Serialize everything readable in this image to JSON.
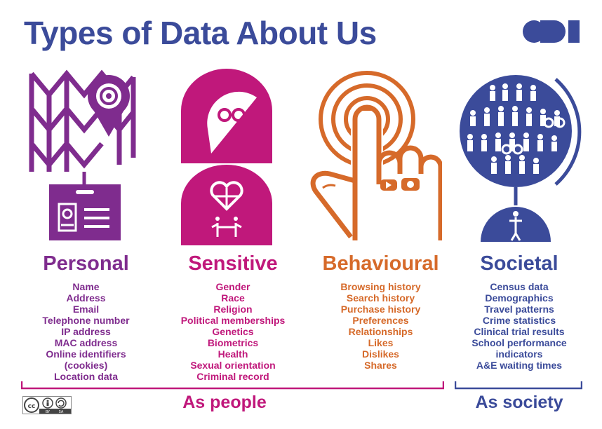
{
  "title": "Types of Data About Us",
  "logo_text": "ODI",
  "colors": {
    "personal": "#7f2c8e",
    "sensitive": "#c0187b",
    "behavioural": "#d66a2a",
    "societal": "#3b4b9a"
  },
  "categories": [
    {
      "name": "Personal",
      "icon": "map-pin-id-card-icon",
      "items": [
        "Name",
        "Address",
        "Email",
        "Telephone number",
        "IP address",
        "MAC address",
        "Online identifiers",
        "(cookies)",
        "Location data"
      ]
    },
    {
      "name": "Sensitive",
      "icon": "person-heart-icon",
      "items": [
        "Gender",
        "Race",
        "Religion",
        "Political memberships",
        "Genetics",
        "Biometrics",
        "Health",
        "Sexual orientation",
        "Criminal record"
      ]
    },
    {
      "name": "Behavioural",
      "icon": "hand-tap-icon",
      "items": [
        "Browsing history",
        "Search history",
        "Purchase history",
        "Preferences",
        "Relationships",
        "Likes",
        "Dislikes",
        "Shares"
      ]
    },
    {
      "name": "Societal",
      "icon": "globe-population-icon",
      "items": [
        "Census data",
        "Demographics",
        "Travel patterns",
        "Crime statistics",
        "Clinical trial results",
        "School performance",
        "indicators",
        "A&E waiting times"
      ]
    }
  ],
  "groups": {
    "people": "As people",
    "society": "As society"
  },
  "license": "CC BY SA"
}
